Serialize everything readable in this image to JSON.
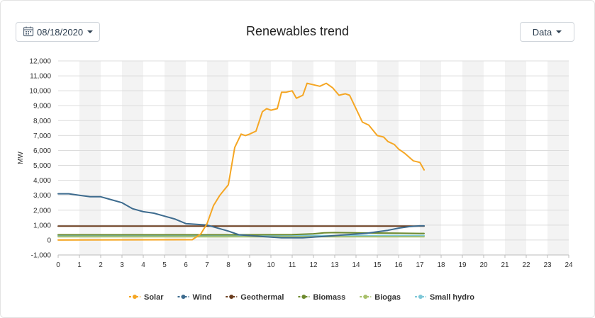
{
  "header": {
    "date_label": "08/18/2020",
    "title": "Renewables trend",
    "data_label": "Data"
  },
  "icons": {
    "date": "calendar-icon",
    "dropdown": "caret-down-icon"
  },
  "chart_data": {
    "type": "line",
    "title": "Renewables trend",
    "xlabel": "",
    "ylabel": "MW",
    "xlim": [
      0,
      24
    ],
    "ylim": [
      -1000,
      12000
    ],
    "x_ticks": [
      0,
      1,
      2,
      3,
      4,
      5,
      6,
      7,
      8,
      9,
      10,
      11,
      12,
      13,
      14,
      15,
      16,
      17,
      18,
      19,
      20,
      21,
      22,
      23,
      24
    ],
    "y_ticks": [
      -1000,
      0,
      1000,
      2000,
      3000,
      4000,
      5000,
      6000,
      7000,
      8000,
      9000,
      10000,
      11000,
      12000
    ],
    "y_tick_labels": [
      "-1,000",
      "0",
      "1,000",
      "2,000",
      "3,000",
      "4,000",
      "5,000",
      "6,000",
      "7,000",
      "8,000",
      "9,000",
      "10,000",
      "11,000",
      "12,000"
    ],
    "grid": true,
    "alternating_bands": true,
    "legend_position": "bottom",
    "series": [
      {
        "name": "Solar",
        "color": "#f5a623",
        "x": [
          0,
          6.3,
          6.7,
          7,
          7.3,
          7.6,
          8,
          8.3,
          8.6,
          8.8,
          9,
          9.3,
          9.6,
          9.8,
          10,
          10.3,
          10.5,
          10.7,
          11,
          11.2,
          11.5,
          11.7,
          12,
          12.3,
          12.6,
          12.9,
          13.2,
          13.5,
          13.7,
          14,
          14.3,
          14.6,
          15,
          15.3,
          15.5,
          15.8,
          16,
          16.3,
          16.7,
          17,
          17.2
        ],
        "y": [
          0,
          20,
          400,
          1100,
          2300,
          3000,
          3700,
          6200,
          7100,
          7000,
          7100,
          7300,
          8600,
          8800,
          8700,
          8800,
          9900,
          9900,
          10000,
          9500,
          9700,
          10500,
          10400,
          10300,
          10500,
          10200,
          9700,
          9800,
          9700,
          8800,
          7900,
          7700,
          7000,
          6900,
          6600,
          6400,
          6100,
          5800,
          5300,
          5200,
          4700
        ]
      },
      {
        "name": "Wind",
        "color": "#3d6b8e",
        "x": [
          0,
          0.5,
          1,
          1.5,
          2,
          2.5,
          3,
          3.5,
          4,
          4.5,
          5,
          5.5,
          6,
          6.5,
          7,
          7.5,
          8,
          8.5,
          9,
          9.5,
          10,
          10.5,
          11,
          11.5,
          12,
          12.5,
          13,
          13.5,
          14,
          14.5,
          15,
          15.5,
          16,
          16.5,
          17,
          17.2
        ],
        "y": [
          3100,
          3100,
          3000,
          2900,
          2900,
          2700,
          2500,
          2100,
          1900,
          1800,
          1600,
          1400,
          1100,
          1050,
          1000,
          800,
          600,
          350,
          300,
          250,
          200,
          150,
          150,
          150,
          200,
          250,
          300,
          350,
          400,
          450,
          550,
          650,
          800,
          900,
          950,
          950
        ]
      },
      {
        "name": "Geothermal",
        "color": "#6b3d1e",
        "x": [
          0,
          17.2
        ],
        "y": [
          930,
          930
        ]
      },
      {
        "name": "Biomass",
        "color": "#6d8a2e",
        "x": [
          0,
          4,
          8,
          11,
          12,
          12.5,
          13,
          14,
          15,
          16,
          17,
          17.2
        ],
        "y": [
          350,
          350,
          350,
          360,
          420,
          480,
          500,
          480,
          470,
          460,
          440,
          440
        ]
      },
      {
        "name": "Biogas",
        "color": "#a8c06a",
        "x": [
          0,
          17.2
        ],
        "y": [
          220,
          220
        ]
      },
      {
        "name": "Small hydro",
        "color": "#7ec8d8",
        "x": [
          0,
          17.2
        ],
        "y": [
          300,
          300
        ]
      }
    ]
  }
}
